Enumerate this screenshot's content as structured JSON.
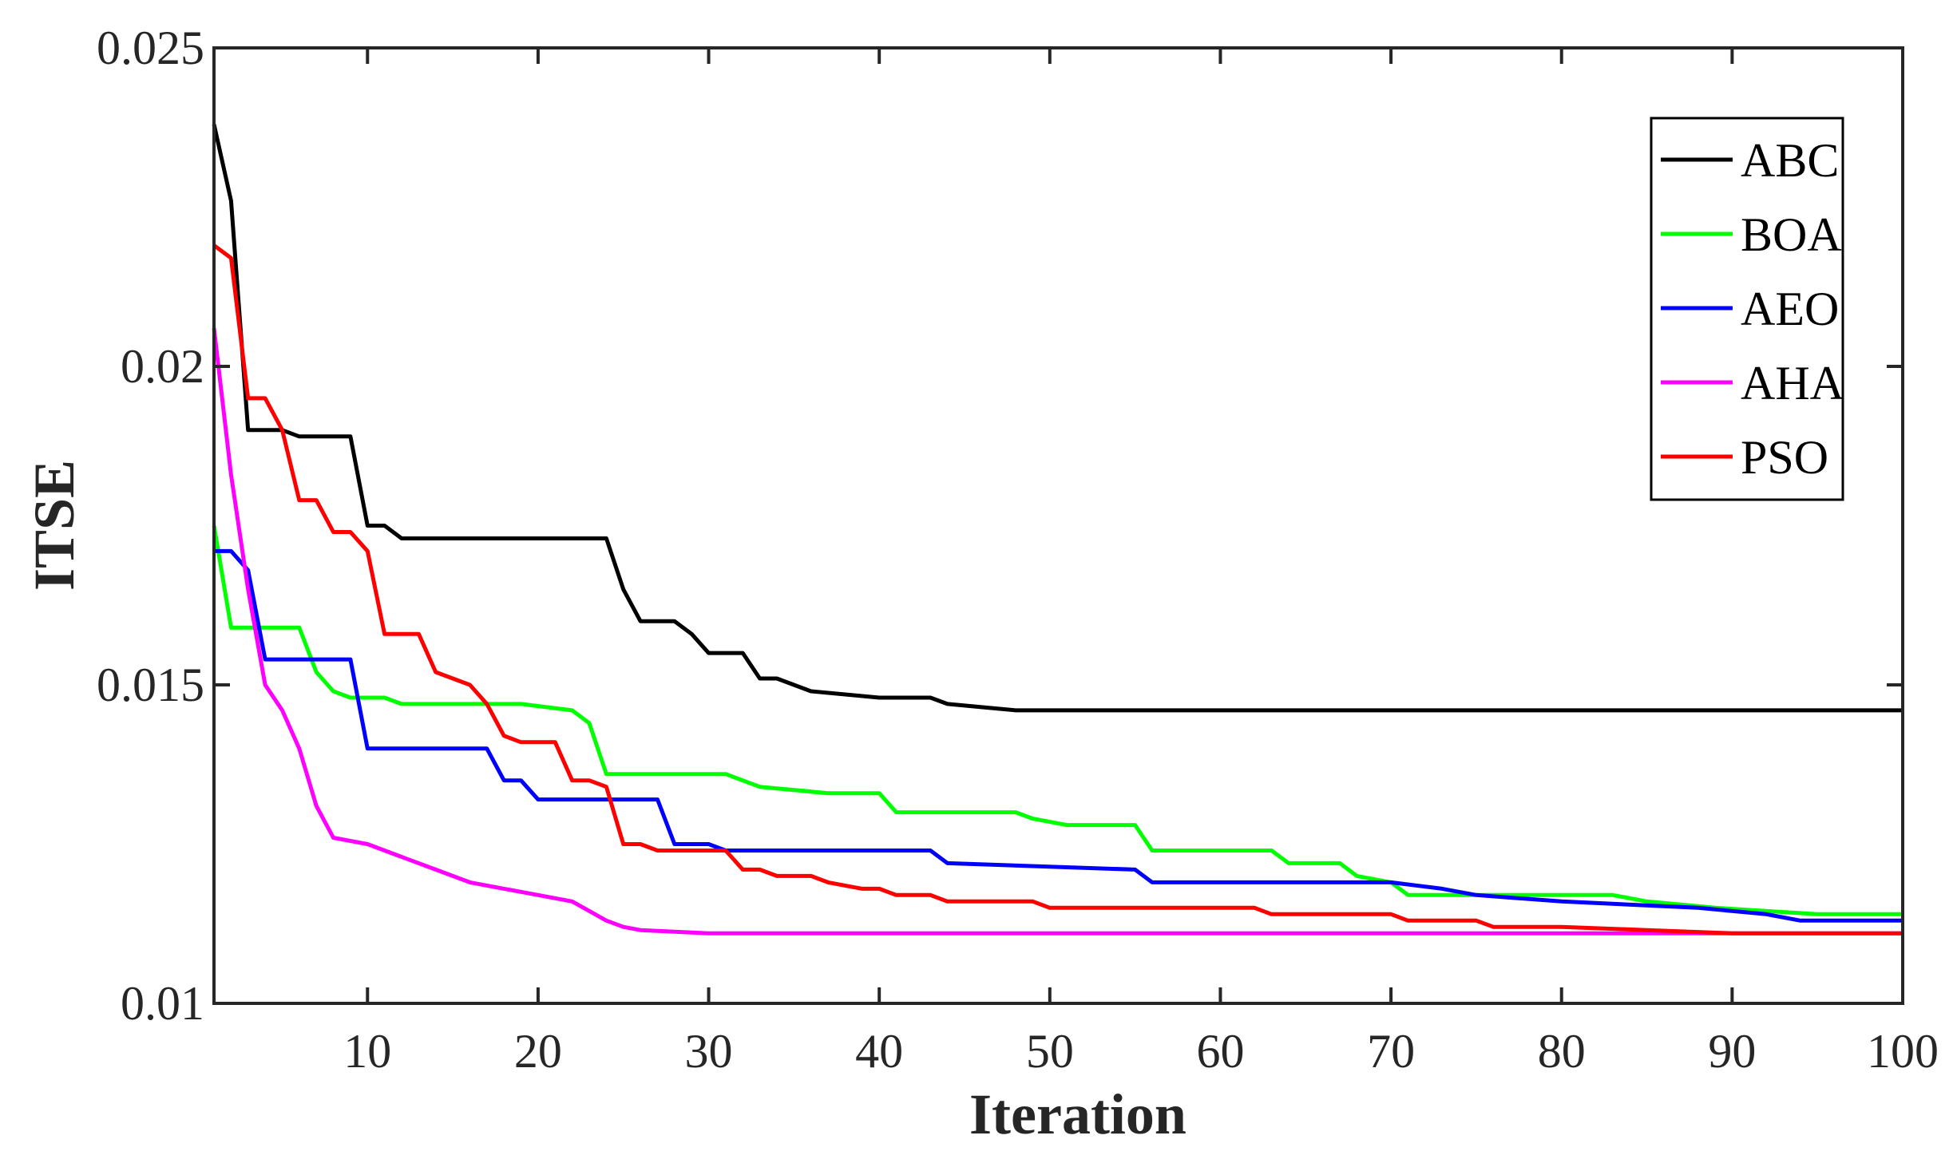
{
  "chart_data": {
    "type": "line",
    "title": "",
    "xlabel": "Iteration",
    "ylabel": "ITSE",
    "xlim": [
      1,
      100
    ],
    "ylim": [
      0.01,
      0.025
    ],
    "x_ticks": [
      10,
      20,
      30,
      40,
      50,
      60,
      70,
      80,
      90,
      100
    ],
    "x_tick_labels": [
      "10",
      "20",
      "30",
      "40",
      "50",
      "60",
      "70",
      "80",
      "90",
      "100"
    ],
    "y_ticks": [
      0.01,
      0.015,
      0.02,
      0.025
    ],
    "y_tick_labels": [
      "0.01",
      "0.015",
      "0.02",
      "0.025"
    ],
    "grid": false,
    "legend_position": "top-right",
    "series": [
      {
        "name": "ABC",
        "color": "#000000",
        "points": [
          [
            1,
            0.0238
          ],
          [
            2,
            0.0226
          ],
          [
            3,
            0.019
          ],
          [
            5,
            0.019
          ],
          [
            6,
            0.0189
          ],
          [
            9,
            0.0189
          ],
          [
            10,
            0.0175
          ],
          [
            11,
            0.0175
          ],
          [
            12,
            0.0173
          ],
          [
            24,
            0.0173
          ],
          [
            25,
            0.0165
          ],
          [
            26,
            0.016
          ],
          [
            28,
            0.016
          ],
          [
            29,
            0.0158
          ],
          [
            30,
            0.0155
          ],
          [
            32,
            0.0155
          ],
          [
            33,
            0.0151
          ],
          [
            34,
            0.0151
          ],
          [
            36,
            0.0149
          ],
          [
            40,
            0.0148
          ],
          [
            43,
            0.0148
          ],
          [
            44,
            0.0147
          ],
          [
            48,
            0.0146
          ],
          [
            52,
            0.0146
          ],
          [
            100,
            0.0146
          ]
        ]
      },
      {
        "name": "BOA",
        "color": "#00ff00",
        "points": [
          [
            1,
            0.0175
          ],
          [
            2,
            0.0159
          ],
          [
            6,
            0.0159
          ],
          [
            7,
            0.0152
          ],
          [
            8,
            0.0149
          ],
          [
            9,
            0.0148
          ],
          [
            11,
            0.0148
          ],
          [
            12,
            0.0147
          ],
          [
            15,
            0.0147
          ],
          [
            19,
            0.0147
          ],
          [
            22,
            0.0146
          ],
          [
            23,
            0.0144
          ],
          [
            24,
            0.0136
          ],
          [
            31,
            0.0136
          ],
          [
            33,
            0.0134
          ],
          [
            37,
            0.0133
          ],
          [
            40,
            0.0133
          ],
          [
            41,
            0.013
          ],
          [
            48,
            0.013
          ],
          [
            49,
            0.0129
          ],
          [
            51,
            0.0128
          ],
          [
            55,
            0.0128
          ],
          [
            56,
            0.0124
          ],
          [
            63,
            0.0124
          ],
          [
            64,
            0.0122
          ],
          [
            67,
            0.0122
          ],
          [
            68,
            0.012
          ],
          [
            70,
            0.0119
          ],
          [
            71,
            0.0117
          ],
          [
            78,
            0.0117
          ],
          [
            83,
            0.0117
          ],
          [
            85,
            0.0116
          ],
          [
            89,
            0.0115
          ],
          [
            95,
            0.0114
          ],
          [
            100,
            0.0114
          ]
        ]
      },
      {
        "name": "AEO",
        "color": "#0000ff",
        "points": [
          [
            1,
            0.0171
          ],
          [
            2,
            0.0171
          ],
          [
            3,
            0.0168
          ],
          [
            4,
            0.0154
          ],
          [
            9,
            0.0154
          ],
          [
            10,
            0.014
          ],
          [
            17,
            0.014
          ],
          [
            18,
            0.0135
          ],
          [
            19,
            0.0135
          ],
          [
            20,
            0.0132
          ],
          [
            27,
            0.0132
          ],
          [
            28,
            0.0125
          ],
          [
            30,
            0.0125
          ],
          [
            31,
            0.0124
          ],
          [
            43,
            0.0124
          ],
          [
            44,
            0.0122
          ],
          [
            55,
            0.0121
          ],
          [
            56,
            0.0119
          ],
          [
            70,
            0.0119
          ],
          [
            73,
            0.0118
          ],
          [
            75,
            0.0117
          ],
          [
            80,
            0.0116
          ],
          [
            88,
            0.0115
          ],
          [
            92,
            0.0114
          ],
          [
            94,
            0.0113
          ],
          [
            100,
            0.0113
          ]
        ]
      },
      {
        "name": "AHA",
        "color": "#ff00ff",
        "points": [
          [
            1,
            0.0206
          ],
          [
            2,
            0.0183
          ],
          [
            3,
            0.0165
          ],
          [
            4,
            0.015
          ],
          [
            5,
            0.0146
          ],
          [
            6,
            0.014
          ],
          [
            7,
            0.0131
          ],
          [
            8,
            0.0126
          ],
          [
            10,
            0.0125
          ],
          [
            12,
            0.0123
          ],
          [
            14,
            0.0121
          ],
          [
            16,
            0.0119
          ],
          [
            18,
            0.0118
          ],
          [
            20,
            0.0117
          ],
          [
            22,
            0.0116
          ],
          [
            24,
            0.0113
          ],
          [
            25,
            0.0112
          ],
          [
            26,
            0.01115
          ],
          [
            30,
            0.0111
          ],
          [
            40,
            0.0111
          ],
          [
            60,
            0.0111
          ],
          [
            100,
            0.0111
          ]
        ]
      },
      {
        "name": "PSO",
        "color": "#ff0000",
        "points": [
          [
            1,
            0.0219
          ],
          [
            2,
            0.0217
          ],
          [
            3,
            0.0195
          ],
          [
            4,
            0.0195
          ],
          [
            5,
            0.019
          ],
          [
            6,
            0.0179
          ],
          [
            7,
            0.0179
          ],
          [
            8,
            0.0174
          ],
          [
            9,
            0.0174
          ],
          [
            10,
            0.0171
          ],
          [
            11,
            0.0158
          ],
          [
            13,
            0.0158
          ],
          [
            14,
            0.0152
          ],
          [
            16,
            0.015
          ],
          [
            17,
            0.0147
          ],
          [
            18,
            0.0142
          ],
          [
            19,
            0.0141
          ],
          [
            21,
            0.0141
          ],
          [
            22,
            0.0135
          ],
          [
            23,
            0.0135
          ],
          [
            24,
            0.0134
          ],
          [
            25,
            0.0125
          ],
          [
            26,
            0.0125
          ],
          [
            27,
            0.0124
          ],
          [
            31,
            0.0124
          ],
          [
            32,
            0.0121
          ],
          [
            33,
            0.0121
          ],
          [
            34,
            0.012
          ],
          [
            36,
            0.012
          ],
          [
            37,
            0.0119
          ],
          [
            39,
            0.0118
          ],
          [
            40,
            0.0118
          ],
          [
            41,
            0.0117
          ],
          [
            43,
            0.0117
          ],
          [
            44,
            0.0116
          ],
          [
            46,
            0.0116
          ],
          [
            49,
            0.0116
          ],
          [
            50,
            0.0115
          ],
          [
            53,
            0.0115
          ],
          [
            62,
            0.0115
          ],
          [
            63,
            0.0114
          ],
          [
            70,
            0.0114
          ],
          [
            71,
            0.0113
          ],
          [
            75,
            0.0113
          ],
          [
            76,
            0.0112
          ],
          [
            80,
            0.0112
          ],
          [
            85,
            0.01115
          ],
          [
            90,
            0.0111
          ],
          [
            100,
            0.0111
          ]
        ]
      }
    ]
  }
}
